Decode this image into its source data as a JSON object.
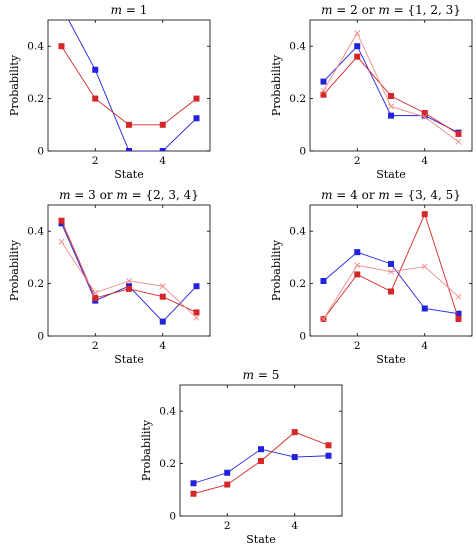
{
  "chart_data": [
    {
      "type": "line",
      "title": "m = 1",
      "xlabel": "State",
      "ylabel": "Probability",
      "x": [
        1,
        2,
        3,
        4,
        5
      ],
      "xlim": [
        0.6,
        5.4
      ],
      "ylim": [
        0,
        0.5
      ],
      "xticks": [
        2,
        4
      ],
      "yticks": [
        0,
        0.2,
        0.4
      ],
      "xtick_labels": [
        "2",
        "4"
      ],
      "ytick_labels": [
        "0",
        "0.2",
        "0.4"
      ],
      "series": [
        {
          "color": "#2222dd",
          "marker": "square",
          "values": [
            0.55,
            0.31,
            0.0,
            0.0,
            0.125
          ]
        },
        {
          "color": "#d62728",
          "marker": "square",
          "values": [
            0.4,
            0.2,
            0.1,
            0.1,
            0.2
          ]
        }
      ]
    },
    {
      "type": "line",
      "title": "m = 2 or m = {1, 2, 3}",
      "xlabel": "State",
      "ylabel": "Probability",
      "x": [
        1,
        2,
        3,
        4,
        5
      ],
      "xlim": [
        0.6,
        5.4
      ],
      "ylim": [
        0,
        0.5
      ],
      "xticks": [
        2,
        4
      ],
      "yticks": [
        0,
        0.2,
        0.4
      ],
      "xtick_labels": [
        "2",
        "4"
      ],
      "ytick_labels": [
        "0",
        "0.2",
        "0.4"
      ],
      "series": [
        {
          "color": "#2222dd",
          "marker": "square",
          "values": [
            0.265,
            0.4,
            0.135,
            0.135,
            0.07
          ]
        },
        {
          "color": "#d62728",
          "marker": "square",
          "values": [
            0.215,
            0.36,
            0.21,
            0.145,
            0.065
          ]
        },
        {
          "color": "#f08a8a",
          "marker": "cross",
          "values": [
            0.23,
            0.45,
            0.17,
            0.13,
            0.035
          ]
        }
      ]
    },
    {
      "type": "line",
      "title": "m = 3 or m = {2, 3, 4}",
      "xlabel": "State",
      "ylabel": "Probability",
      "x": [
        1,
        2,
        3,
        4,
        5
      ],
      "xlim": [
        0.6,
        5.4
      ],
      "ylim": [
        0,
        0.5
      ],
      "xticks": [
        2,
        4
      ],
      "yticks": [
        0,
        0.2,
        0.4
      ],
      "xtick_labels": [
        "2",
        "4"
      ],
      "ytick_labels": [
        "0",
        "0.2",
        "0.4"
      ],
      "series": [
        {
          "color": "#2222dd",
          "marker": "square",
          "values": [
            0.43,
            0.135,
            0.19,
            0.055,
            0.19
          ]
        },
        {
          "color": "#d62728",
          "marker": "square",
          "values": [
            0.44,
            0.145,
            0.18,
            0.15,
            0.09
          ]
        },
        {
          "color": "#f08a8a",
          "marker": "cross",
          "values": [
            0.36,
            0.165,
            0.21,
            0.19,
            0.07
          ]
        }
      ]
    },
    {
      "type": "line",
      "title": "m = 4 or m = {3, 4, 5}",
      "xlabel": "State",
      "ylabel": "Probability",
      "x": [
        1,
        2,
        3,
        4,
        5
      ],
      "xlim": [
        0.6,
        5.4
      ],
      "ylim": [
        0,
        0.5
      ],
      "xticks": [
        2,
        4
      ],
      "yticks": [
        0,
        0.2,
        0.4
      ],
      "xtick_labels": [
        "2",
        "4"
      ],
      "ytick_labels": [
        "0",
        "0.2",
        "0.4"
      ],
      "series": [
        {
          "color": "#2222dd",
          "marker": "square",
          "values": [
            0.21,
            0.32,
            0.275,
            0.105,
            0.085
          ]
        },
        {
          "color": "#d62728",
          "marker": "square",
          "values": [
            0.065,
            0.235,
            0.17,
            0.465,
            0.065
          ]
        },
        {
          "color": "#f08a8a",
          "marker": "cross",
          "values": [
            0.065,
            0.27,
            0.245,
            0.265,
            0.15
          ]
        }
      ]
    },
    {
      "type": "line",
      "title": "m = 5",
      "xlabel": "State",
      "ylabel": "Probability",
      "x": [
        1,
        2,
        3,
        4,
        5
      ],
      "xlim": [
        0.6,
        5.4
      ],
      "ylim": [
        0,
        0.5
      ],
      "xticks": [
        2,
        4
      ],
      "yticks": [
        0,
        0.2,
        0.4
      ],
      "xtick_labels": [
        "2",
        "4"
      ],
      "ytick_labels": [
        "0",
        "0.2",
        "0.4"
      ],
      "series": [
        {
          "color": "#2222dd",
          "marker": "square",
          "values": [
            0.125,
            0.165,
            0.255,
            0.225,
            0.23
          ]
        },
        {
          "color": "#d62728",
          "marker": "square",
          "values": [
            0.085,
            0.12,
            0.21,
            0.32,
            0.27
          ]
        }
      ]
    }
  ]
}
